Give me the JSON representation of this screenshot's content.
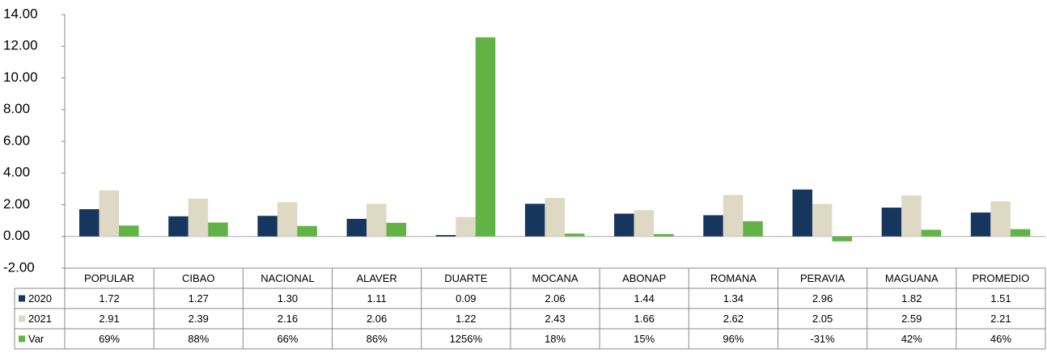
{
  "chart_data": {
    "type": "bar",
    "categories": [
      "POPULAR",
      "CIBAO",
      "NACIONAL",
      "ALAVER",
      "DUARTE",
      "MOCANA",
      "ABONAP",
      "ROMANA",
      "PERAVIA",
      "MAGUANA",
      "PROMEDIO"
    ],
    "series": [
      {
        "name": "2020",
        "color": "#17365d",
        "values": [
          1.72,
          1.27,
          1.3,
          1.11,
          0.09,
          2.06,
          1.44,
          1.34,
          2.96,
          1.82,
          1.51
        ],
        "value_labels": [
          "1.72",
          "1.27",
          "1.30",
          "1.11",
          "0.09",
          "2.06",
          "1.44",
          "1.34",
          "2.96",
          "1.82",
          "1.51"
        ]
      },
      {
        "name": "2021",
        "color": "#ddd9c4",
        "values": [
          2.91,
          2.39,
          2.16,
          2.06,
          1.22,
          2.43,
          1.66,
          2.62,
          2.05,
          2.59,
          2.21
        ],
        "value_labels": [
          "2.91",
          "2.39",
          "2.16",
          "2.06",
          "1.22",
          "2.43",
          "1.66",
          "2.62",
          "2.05",
          "2.59",
          "2.21"
        ]
      },
      {
        "name": "Var",
        "color": "#62b345",
        "values": [
          0.69,
          0.88,
          0.66,
          0.86,
          12.56,
          0.18,
          0.15,
          0.96,
          -0.31,
          0.42,
          0.46
        ],
        "value_labels": [
          "69%",
          "88%",
          "66%",
          "86%",
          "1256%",
          "18%",
          "15%",
          "96%",
          "-31%",
          "42%",
          "46%"
        ]
      }
    ],
    "ylim": [
      -2,
      14
    ],
    "yticks": [
      {
        "value": -2,
        "label": "-2.00"
      },
      {
        "value": 0,
        "label": "0.00"
      },
      {
        "value": 2,
        "label": "2.00"
      },
      {
        "value": 4,
        "label": "4.00"
      },
      {
        "value": 6,
        "label": "6.00"
      },
      {
        "value": 8,
        "label": "8.00"
      },
      {
        "value": 10,
        "label": "10.00"
      },
      {
        "value": 12,
        "label": "12.00"
      },
      {
        "value": 14,
        "label": "14.00"
      }
    ]
  }
}
